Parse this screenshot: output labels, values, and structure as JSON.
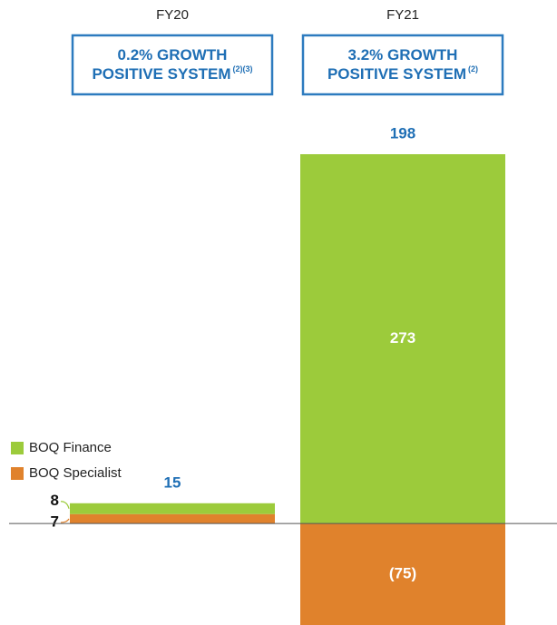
{
  "chart_data": {
    "type": "stacked_bar",
    "categories": [
      "FY20",
      "FY21"
    ],
    "annotations": [
      {
        "lines": [
          "0.2% GROWTH",
          "POSITIVE SYSTEM"
        ],
        "note": "(2)(3)"
      },
      {
        "lines": [
          "3.2% GROWTH",
          "POSITIVE SYSTEM"
        ],
        "note": "(2)"
      }
    ],
    "totals": [
      15,
      198
    ],
    "series": [
      {
        "name": "BOQ Finance",
        "color": "#9ccb3b",
        "values": [
          8,
          273
        ]
      },
      {
        "name": "BOQ Specialist",
        "color": "#e0822c",
        "values": [
          7,
          -75
        ],
        "value_labels": [
          "7",
          "(75)"
        ]
      }
    ]
  }
}
